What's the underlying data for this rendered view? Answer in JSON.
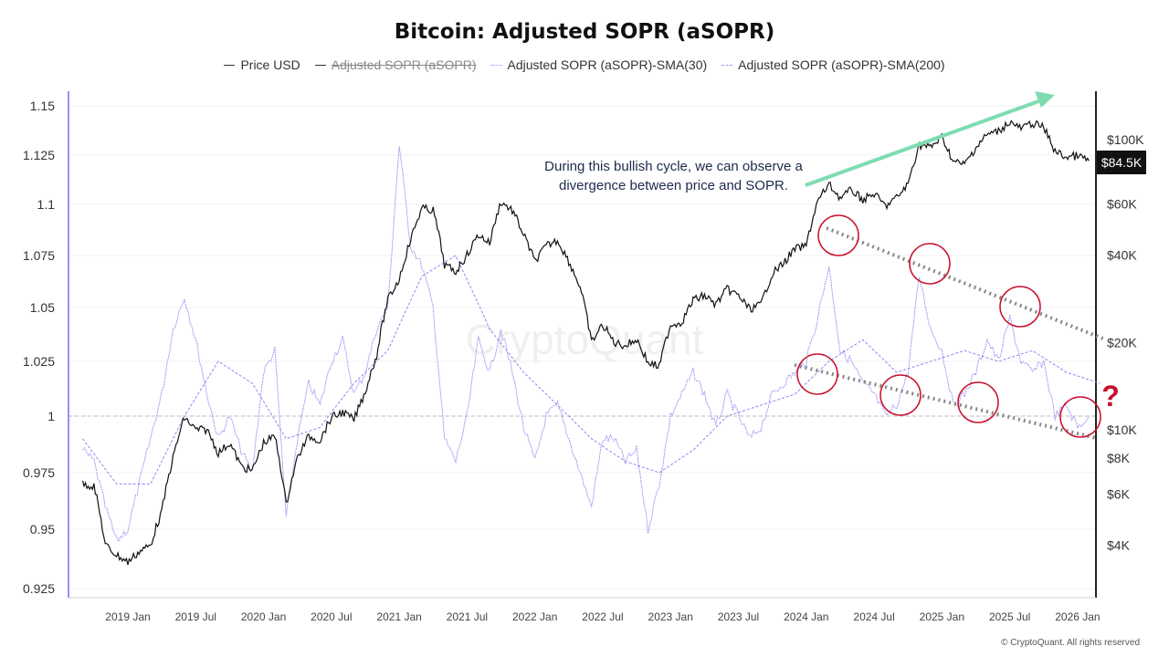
{
  "title": "Bitcoin: Adjusted SOPR (aSOPR)",
  "legend": [
    {
      "label": "Price USD",
      "color": "#333333",
      "style": "solid",
      "hidden": false
    },
    {
      "label": "Adjusted SOPR (aSOPR)",
      "color": "#333333",
      "style": "solid",
      "hidden": true
    },
    {
      "label": "Adjusted SOPR (aSOPR)-SMA(30)",
      "color": "#7b6cf0",
      "style": "dotted",
      "hidden": false
    },
    {
      "label": "Adjusted SOPR (aSOPR)-SMA(200)",
      "color": "#7b6cf0",
      "style": "dashed",
      "hidden": false
    }
  ],
  "annotation": "During this bullish cycle, we can observe a divergence between price and SOPR.",
  "question_mark": "?",
  "watermark": "CryptoQuant",
  "copyright": "© CryptoQuant. All rights reserved",
  "current_price_label": "$84.5K",
  "colors": {
    "price": "#111111",
    "sopr": "#7b6cf0",
    "arrow": "#7ddcb0",
    "circle": "#c8102e",
    "trend": "#888888"
  },
  "chart_data": {
    "type": "line",
    "title": "Bitcoin: Adjusted SOPR (aSOPR)",
    "x_ticks": [
      "2019 Jan",
      "2019 Jul",
      "2020 Jan",
      "2020 Jul",
      "2021 Jan",
      "2021 Jul",
      "2022 Jan",
      "2022 Jul",
      "2023 Jan",
      "2023 Jul",
      "2024 Jan",
      "2024 Jul",
      "2025 Jan",
      "2025 Jul",
      "2026 Jan"
    ],
    "y_left_ticks": [
      "1.15",
      "1.125",
      "1.1",
      "1.075",
      "1.05",
      "1.025",
      "1",
      "0.975",
      "0.95",
      "0.925"
    ],
    "y_right_ticks": [
      "$100K",
      "$60K",
      "$40K",
      "$20K",
      "$10K",
      "$8K",
      "$6K",
      "$4K"
    ],
    "y_right_scale": "log",
    "reference_line": 1,
    "grid": true,
    "legend_placement": "top",
    "x_start": "2018-09",
    "series": [
      {
        "name": "Price USD",
        "axis": "right",
        "values": [
          6500,
          6400,
          4000,
          3700,
          3500,
          3800,
          4000,
          5200,
          8000,
          11000,
          10000,
          10000,
          8300,
          9000,
          7500,
          7200,
          9000,
          9500,
          5500,
          8000,
          9500,
          9200,
          11000,
          11500,
          10800,
          13500,
          18000,
          28000,
          33000,
          45000,
          58000,
          57000,
          37000,
          35000,
          40000,
          47000,
          44000,
          61000,
          57000,
          47000,
          38000,
          43000,
          45000,
          38000,
          31000,
          20000,
          23000,
          20000,
          19500,
          20500,
          17000,
          16500,
          23000,
          23500,
          28000,
          29000,
          27000,
          30500,
          29000,
          26000,
          27000,
          34500,
          37500,
          42000,
          43000,
          61000,
          70000,
          63000,
          67000,
          62000,
          65000,
          59000,
          63000,
          70000,
          96000,
          94000,
          102000,
          84000,
          82000,
          94000,
          104000,
          107000,
          115000,
          109000,
          114000,
          110000,
          91000,
          87000,
          88000,
          84500
        ]
      },
      {
        "name": "Adjusted SOPR (aSOPR)-SMA(30)",
        "axis": "left",
        "values": [
          0.985,
          0.98,
          0.96,
          0.945,
          0.95,
          0.97,
          0.99,
          1.01,
          1.04,
          1.055,
          1.035,
          1.01,
          0.99,
          1.0,
          0.985,
          0.975,
          1.02,
          1.03,
          0.955,
          0.99,
          1.015,
          1.005,
          1.025,
          1.035,
          1.01,
          1.02,
          1.04,
          1.05,
          1.13,
          1.08,
          1.07,
          1.05,
          0.99,
          0.98,
          1.0,
          1.035,
          1.02,
          1.04,
          1.02,
          0.995,
          0.98,
          1.0,
          1.005,
          0.99,
          0.975,
          0.96,
          0.99,
          0.99,
          0.98,
          0.985,
          0.95,
          0.97,
          1.0,
          1.01,
          1.02,
          1.01,
          0.995,
          1.01,
          1.0,
          0.99,
          0.995,
          1.01,
          1.015,
          1.02,
          1.025,
          1.045,
          1.07,
          1.03,
          1.025,
          1.015,
          1.01,
          1.0,
          1.005,
          1.02,
          1.065,
          1.04,
          1.03,
          1.005,
          1.01,
          1.02,
          1.035,
          1.025,
          1.045,
          1.025,
          1.02,
          1.025,
          1.0,
          1.005,
          0.995,
          1.0
        ]
      },
      {
        "name": "Adjusted SOPR (aSOPR)-SMA(200)",
        "axis": "left",
        "step_months": 3,
        "values": [
          0.99,
          0.97,
          0.97,
          1.0,
          1.025,
          1.015,
          0.99,
          0.995,
          1.015,
          1.03,
          1.065,
          1.075,
          1.04,
          1.02,
          1.005,
          0.99,
          0.98,
          0.975,
          0.985,
          1.0,
          1.005,
          1.01,
          1.025,
          1.035,
          1.02,
          1.025,
          1.03,
          1.025,
          1.03,
          1.02,
          1.015
        ]
      }
    ]
  }
}
